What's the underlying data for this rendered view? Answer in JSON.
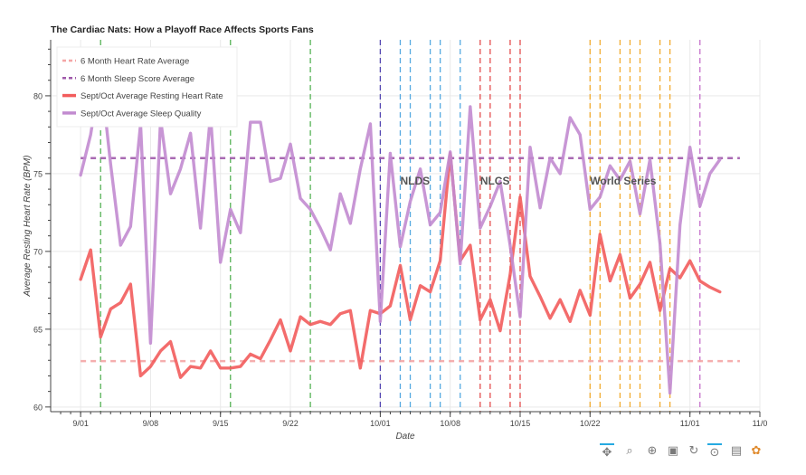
{
  "title": "The Cardiac Nats: How a Playoff Race Affects Sports Fans",
  "toolbar": {
    "items": [
      {
        "name": "pan-tool-icon",
        "glyph": "✥",
        "active": true
      },
      {
        "name": "box-zoom-icon",
        "glyph": "⌕",
        "active": false
      },
      {
        "name": "wheel-zoom-icon",
        "glyph": "⊕",
        "active": false
      },
      {
        "name": "save-icon",
        "glyph": "▣",
        "active": false
      },
      {
        "name": "reset-icon",
        "glyph": "↻",
        "active": false
      },
      {
        "name": "hover-icon",
        "glyph": "⊙",
        "active": true
      },
      {
        "name": "help-icon",
        "glyph": "▤",
        "active": false
      },
      {
        "name": "bokeh-logo-icon",
        "glyph": "✿",
        "active": false
      }
    ]
  },
  "chart_data": {
    "type": "line",
    "title": "The Cardiac Nats: How a Playoff Race Affects Sports Fans",
    "xlabel": "Date",
    "ylabel": "Average Resting Heart Rate (BPM)",
    "xlim": [
      "2019-08-29",
      "2019-11-08"
    ],
    "ylim": [
      59.7,
      83.6
    ],
    "x_ticks": [
      {
        "date": "2019-09-01",
        "label": "9/01"
      },
      {
        "date": "2019-09-08",
        "label": "9/08"
      },
      {
        "date": "2019-09-15",
        "label": "9/15"
      },
      {
        "date": "2019-09-22",
        "label": "9/22"
      },
      {
        "date": "2019-10-01",
        "label": "10/01"
      },
      {
        "date": "2019-10-08",
        "label": "10/08"
      },
      {
        "date": "2019-10-15",
        "label": "10/15"
      },
      {
        "date": "2019-10-22",
        "label": "10/22"
      },
      {
        "date": "2019-11-01",
        "label": "11/01"
      },
      {
        "date": "2019-11-08",
        "label": "11/0"
      }
    ],
    "y_ticks": [
      60,
      65,
      70,
      75,
      80
    ],
    "grid": true,
    "legend_position": "top-left",
    "series": [
      {
        "name": "6 Month Heart Rate Average",
        "kind": "hline",
        "value": 62.95,
        "x_range": [
          "2019-09-01",
          "2019-11-06"
        ],
        "color": "#f4a6a6",
        "dash": true
      },
      {
        "name": "6 Month Sleep Score Average",
        "kind": "hline",
        "value": 76.0,
        "x_range": [
          "2019-09-01",
          "2019-11-06"
        ],
        "color": "#a05aab",
        "dash": true
      },
      {
        "name": "Sept/Oct Average Resting Heart Rate",
        "kind": "line",
        "color": "#f25c5c",
        "start": "2019-09-01",
        "values": [
          68.2,
          70.1,
          64.5,
          66.3,
          66.7,
          67.9,
          62.0,
          62.6,
          63.6,
          64.2,
          61.9,
          62.6,
          62.5,
          63.6,
          62.5,
          62.5,
          62.6,
          63.4,
          63.1,
          64.3,
          65.6,
          63.6,
          65.8,
          65.3,
          65.5,
          65.3,
          66.0,
          66.2,
          62.5,
          66.2,
          66.0,
          66.5,
          69.1,
          65.6,
          67.8,
          67.4,
          69.4,
          76.3,
          69.4,
          70.4,
          65.6,
          66.9,
          64.9,
          68.5,
          73.5,
          68.4,
          67.1,
          65.7,
          66.9,
          65.5,
          67.5,
          65.9,
          71.1,
          68.1,
          69.8,
          67.0,
          67.9,
          69.3,
          66.2,
          68.9,
          68.3,
          69.4,
          68.1,
          67.7,
          67.4
        ]
      },
      {
        "name": "Sept/Oct Average Sleep Quality",
        "kind": "line",
        "color": "#c28bd0",
        "start": "2019-09-01",
        "values": [
          74.9,
          77.5,
          81.5,
          75.6,
          70.4,
          71.6,
          78.2,
          64.1,
          78.5,
          73.7,
          75.3,
          77.6,
          71.5,
          78.8,
          69.3,
          72.7,
          71.2,
          78.3,
          78.3,
          74.5,
          74.7,
          76.9,
          73.4,
          72.7,
          71.5,
          70.1,
          73.7,
          71.8,
          75.3,
          78.2,
          65.5,
          76.3,
          70.3,
          73.2,
          75.3,
          71.7,
          72.5,
          76.4,
          69.2,
          79.3,
          71.5,
          72.9,
          74.5,
          70.4,
          65.8,
          76.7,
          72.8,
          76.0,
          75.0,
          78.6,
          77.5,
          72.7,
          73.5,
          75.5,
          74.6,
          75.8,
          72.4,
          75.9,
          70.5,
          60.9,
          71.7,
          76.7,
          72.9,
          75.0,
          75.9
        ]
      }
    ],
    "annotations": [
      {
        "text": "NLDS",
        "date": "2019-10-03",
        "y": 74.3
      },
      {
        "text": "NLCS",
        "date": "2019-10-11",
        "y": 74.3
      },
      {
        "text": "World Series",
        "date": "2019-10-22",
        "y": 74.3
      }
    ],
    "vlines": [
      {
        "group": "regular-season",
        "color": "#4cae4c",
        "dates": [
          "2019-09-03",
          "2019-09-16",
          "2019-09-24"
        ]
      },
      {
        "group": "wild-card",
        "color": "#4c3fb0",
        "dates": [
          "2019-10-01"
        ]
      },
      {
        "group": "nlds",
        "color": "#4da6e0",
        "dates": [
          "2019-10-03",
          "2019-10-04",
          "2019-10-06",
          "2019-10-07",
          "2019-10-09"
        ]
      },
      {
        "group": "nlcs",
        "color": "#e34545",
        "dates": [
          "2019-10-11",
          "2019-10-12",
          "2019-10-14",
          "2019-10-15"
        ]
      },
      {
        "group": "world-series",
        "color": "#f2a825",
        "dates": [
          "2019-10-22",
          "2019-10-23",
          "2019-10-25",
          "2019-10-26",
          "2019-10-27",
          "2019-10-29",
          "2019-10-30"
        ]
      },
      {
        "group": "post-season",
        "color": "#c36bc9",
        "dates": [
          "2019-11-02"
        ]
      }
    ]
  }
}
